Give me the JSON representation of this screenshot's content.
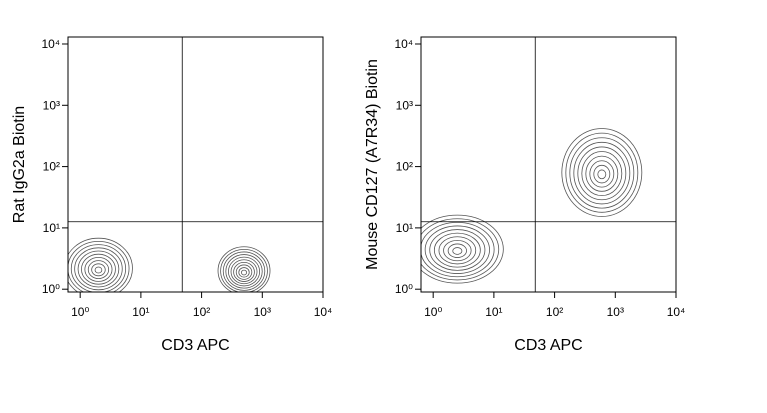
{
  "chart_data": [
    {
      "type": "contour",
      "xlabel": "CD3 APC",
      "ylabel": "Rat IgG2a Biotin",
      "xscale": "log",
      "yscale": "log",
      "xlim": [
        0.63,
        10000
      ],
      "ylim": [
        0.9,
        13000
      ],
      "xticks": [
        {
          "value": 1,
          "label": "10⁰"
        },
        {
          "value": 10,
          "label": "10¹"
        },
        {
          "value": 100,
          "label": "10²"
        },
        {
          "value": 1000,
          "label": "10³"
        },
        {
          "value": 10000,
          "label": "10⁴"
        }
      ],
      "yticks": [
        {
          "value": 1,
          "label": "10⁰"
        },
        {
          "value": 10,
          "label": "10¹"
        },
        {
          "value": 100,
          "label": "10²"
        },
        {
          "value": 1000,
          "label": "10³"
        },
        {
          "value": 10000,
          "label": "10⁴"
        }
      ],
      "gate": {
        "x": 48,
        "y": 12.6
      },
      "color": "#555555",
      "populations": [
        {
          "x": 2,
          "y": 2.2
        },
        {
          "x": 500,
          "y": 2
        }
      ]
    },
    {
      "type": "contour",
      "xlabel": "CD3 APC",
      "ylabel": "Mouse CD127 (A7R34) Biotin",
      "xscale": "log",
      "yscale": "log",
      "xlim": [
        0.63,
        10000
      ],
      "ylim": [
        0.9,
        13000
      ],
      "xticks": [
        {
          "value": 1,
          "label": "10⁰"
        },
        {
          "value": 10,
          "label": "10¹"
        },
        {
          "value": 100,
          "label": "10²"
        },
        {
          "value": 1000,
          "label": "10³"
        },
        {
          "value": 10000,
          "label": "10⁴"
        }
      ],
      "yticks": [
        {
          "value": 1,
          "label": "10⁰"
        },
        {
          "value": 10,
          "label": "10¹"
        },
        {
          "value": 100,
          "label": "10²"
        },
        {
          "value": 1000,
          "label": "10³"
        },
        {
          "value": 10000,
          "label": "10⁴"
        }
      ],
      "gate": {
        "x": 48,
        "y": 12.6
      },
      "color": "#555555",
      "populations": [
        {
          "x": 2.5,
          "y": 4.5
        },
        {
          "x": 600,
          "y": 80
        }
      ]
    }
  ]
}
